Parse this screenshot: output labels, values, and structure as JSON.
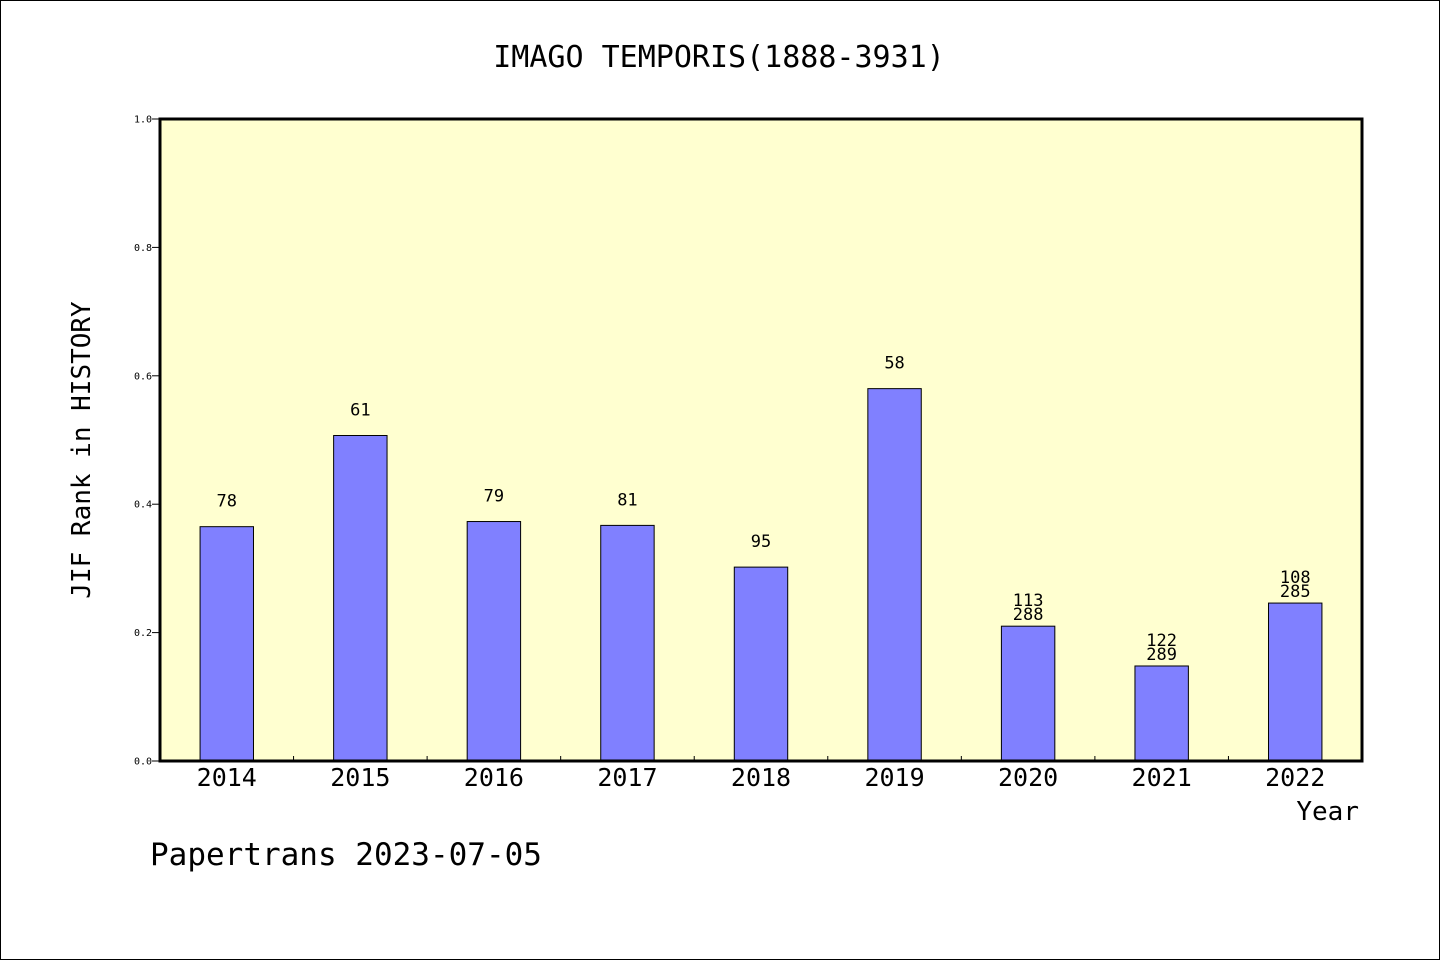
{
  "chart_data": {
    "type": "bar",
    "title": "IMAGO TEMPORIS(1888-3931)",
    "xlabel": "Year",
    "ylabel": "JIF Rank in HISTORY",
    "categories": [
      "2014",
      "2015",
      "2016",
      "2017",
      "2018",
      "2019",
      "2020",
      "2021",
      "2022"
    ],
    "values": [
      0.365,
      0.507,
      0.373,
      0.367,
      0.302,
      0.58,
      0.21,
      0.148,
      0.246
    ],
    "bar_labels": [
      [
        "78"
      ],
      [
        "61"
      ],
      [
        "79"
      ],
      [
        "81"
      ],
      [
        "95"
      ],
      [
        "58"
      ],
      [
        "113",
        "288"
      ],
      [
        "122",
        "289"
      ],
      [
        "108",
        "285"
      ]
    ],
    "ylim": [
      0,
      1.0
    ],
    "yticks": [
      "0.0",
      "0.2",
      "0.4",
      "0.6",
      "0.8",
      "1.0"
    ],
    "grid": false,
    "colors": {
      "bar": "#8080ff",
      "plot_background": "#ffffd0"
    }
  },
  "footer": {
    "credit": "Papertrans 2023-07-05"
  }
}
